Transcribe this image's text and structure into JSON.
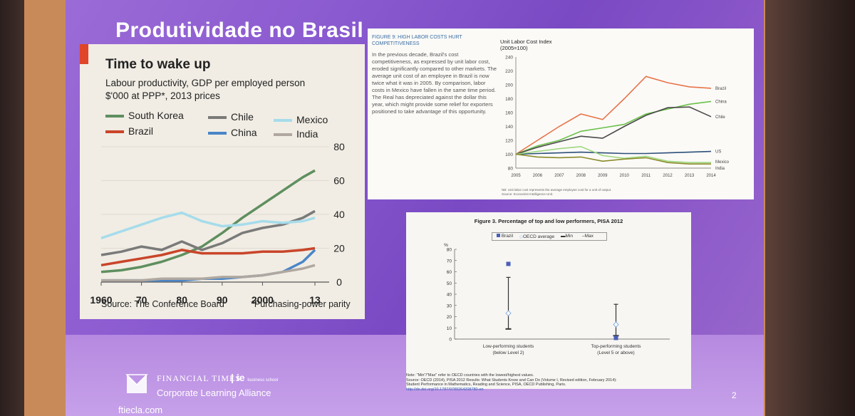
{
  "slide": {
    "title": "Produtividade no Brasil",
    "page_number": "2",
    "footer": {
      "brand": "FINANCIAL TIMES",
      "partner": "ie",
      "partner_sub": "business school",
      "subtitle": "Corporate Learning Alliance",
      "url": "ftiecla.com"
    }
  },
  "panel1": {
    "title": "Time to wake up",
    "subtitle_line1": "Labour productivity, GDP per employed person",
    "subtitle_line2": "$'000 at PPP*, 2013 prices",
    "source": "Source: The Conference Board",
    "note": "*Purchasing-power parity"
  },
  "panel2": {
    "figure_label": "FIGURE 9: HIGH LABOR COSTS HURT COMPETITIVENESS",
    "body": "In the previous decade, Brazil's cost competitiveness, as expressed by unit labor cost, eroded significantly compared to other markets. The average unit cost of an employee in Brazil is now twice what it was in 2005. By comparison, labor costs in Mexico have fallen in the same time period. The Real has depreciated against the dollar this year, which might provide some relief for exporters positioned to take advantage of this opportunity.",
    "y_title_line1": "Unit Labor Cost Index",
    "y_title_line2": "(2005=100)",
    "note_line1": "NB: Unit labor cost represents the average employee cost for a unit of output.",
    "note_line2": "Source: Economist Intelligence Unit."
  },
  "panel3": {
    "title": "Figure 3. Percentage of top and low performers, PISA 2012",
    "legend": [
      "Brazil",
      "OECD average",
      "Min",
      "Max"
    ],
    "foot_line1": "Note: \"Min\"/\"Max\" refer to OECD countries with the lowest/highest values.",
    "foot_line2": "Source: OECD (2014), PISA 2012 Results: What Students Know and Can Do (Volume I, Revised edition, February 2014):",
    "foot_line3": "Student Performance in Mathematics, Reading and Science, PISA, OECD Publishing, Paris.",
    "foot_line4": "http://dx.doi.org/10.1787/9789264208780-en"
  },
  "chart_data": [
    {
      "type": "line",
      "title": "Time to wake up",
      "ylabel": "Labour productivity, GDP per employed person $'000 at PPP*, 2013 prices",
      "x_tick_labels": [
        "1960",
        "70",
        "80",
        "90",
        "2000",
        "13"
      ],
      "y_ticks": [
        0,
        20,
        40,
        60,
        80
      ],
      "ylim": [
        0,
        80
      ],
      "xlim": [
        1960,
        2013
      ],
      "x": [
        1960,
        1965,
        1970,
        1975,
        1980,
        1985,
        1990,
        1995,
        2000,
        2005,
        2010,
        2013
      ],
      "series": [
        {
          "name": "South Korea",
          "color": "#5f8f5f",
          "values": [
            6,
            7,
            9,
            12,
            16,
            21,
            29,
            38,
            46,
            54,
            62,
            66
          ]
        },
        {
          "name": "Brazil",
          "color": "#c9452a",
          "values": [
            10,
            12,
            14,
            16,
            19,
            17,
            17,
            17,
            18,
            18,
            19,
            20
          ]
        },
        {
          "name": "Chile",
          "color": "#7a7a7a",
          "values": [
            16,
            18,
            21,
            19,
            24,
            19,
            23,
            29,
            32,
            34,
            38,
            42
          ]
        },
        {
          "name": "China",
          "color": "#4a86c8",
          "values": [
            1,
            1,
            1,
            1,
            1,
            2,
            2,
            3,
            4,
            6,
            12,
            19
          ]
        },
        {
          "name": "Mexico",
          "color": "#a6dceb",
          "values": [
            26,
            30,
            34,
            38,
            41,
            36,
            33,
            34,
            36,
            35,
            36,
            38
          ]
        },
        {
          "name": "India",
          "color": "#b0a8a0",
          "values": [
            1,
            1,
            1,
            2,
            2,
            2,
            3,
            3,
            4,
            6,
            8,
            10
          ]
        }
      ],
      "legend": "top",
      "grid": false
    },
    {
      "type": "line",
      "title": "Unit Labor Cost Index (2005=100)",
      "x": [
        "2005",
        "2006",
        "2007",
        "2008",
        "2009",
        "2010",
        "2011",
        "2012",
        "2013",
        "2014"
      ],
      "y_ticks": [
        80,
        100,
        120,
        140,
        160,
        180,
        200,
        220,
        240
      ],
      "ylim": [
        80,
        240
      ],
      "series": [
        {
          "name": "Brazil",
          "color": "#e8744a",
          "values": [
            100,
            120,
            140,
            158,
            150,
            180,
            212,
            203,
            197,
            195
          ]
        },
        {
          "name": "China",
          "color": "#6cc04a",
          "values": [
            100,
            112,
            120,
            133,
            138,
            143,
            158,
            165,
            172,
            176
          ]
        },
        {
          "name": "Chile",
          "color": "#4a4a4a",
          "values": [
            100,
            110,
            118,
            126,
            123,
            140,
            156,
            167,
            168,
            154
          ]
        },
        {
          "name": "US",
          "color": "#2e4f7a",
          "values": [
            100,
            101,
            102,
            103,
            102,
            101,
            101,
            102,
            103,
            104
          ]
        },
        {
          "name": "Mexico",
          "color": "#9ed880",
          "values": [
            100,
            104,
            108,
            111,
            98,
            94,
            97,
            90,
            88,
            88
          ]
        },
        {
          "name": "India",
          "color": "#8a8a2a",
          "values": [
            100,
            96,
            95,
            96,
            90,
            93,
            95,
            88,
            86,
            86
          ]
        }
      ],
      "legend": "end-labels",
      "grid": false
    },
    {
      "type": "scatter",
      "title": "Figure 3. Percentage of top and low performers, PISA 2012",
      "ylabel": "%",
      "categories": [
        "Low-performing students (below Level 2)",
        "Top-performing students (Level 5 or above)"
      ],
      "y_ticks": [
        0,
        10,
        20,
        30,
        40,
        50,
        60,
        70,
        80
      ],
      "ylim": [
        0,
        80
      ],
      "series": [
        {
          "name": "Brazil",
          "values": [
            67,
            1
          ]
        },
        {
          "name": "OECD average",
          "values": [
            23,
            13
          ]
        },
        {
          "name": "Min",
          "values": [
            9,
            3
          ]
        },
        {
          "name": "Max",
          "values": [
            55,
            31
          ]
        }
      ]
    }
  ]
}
